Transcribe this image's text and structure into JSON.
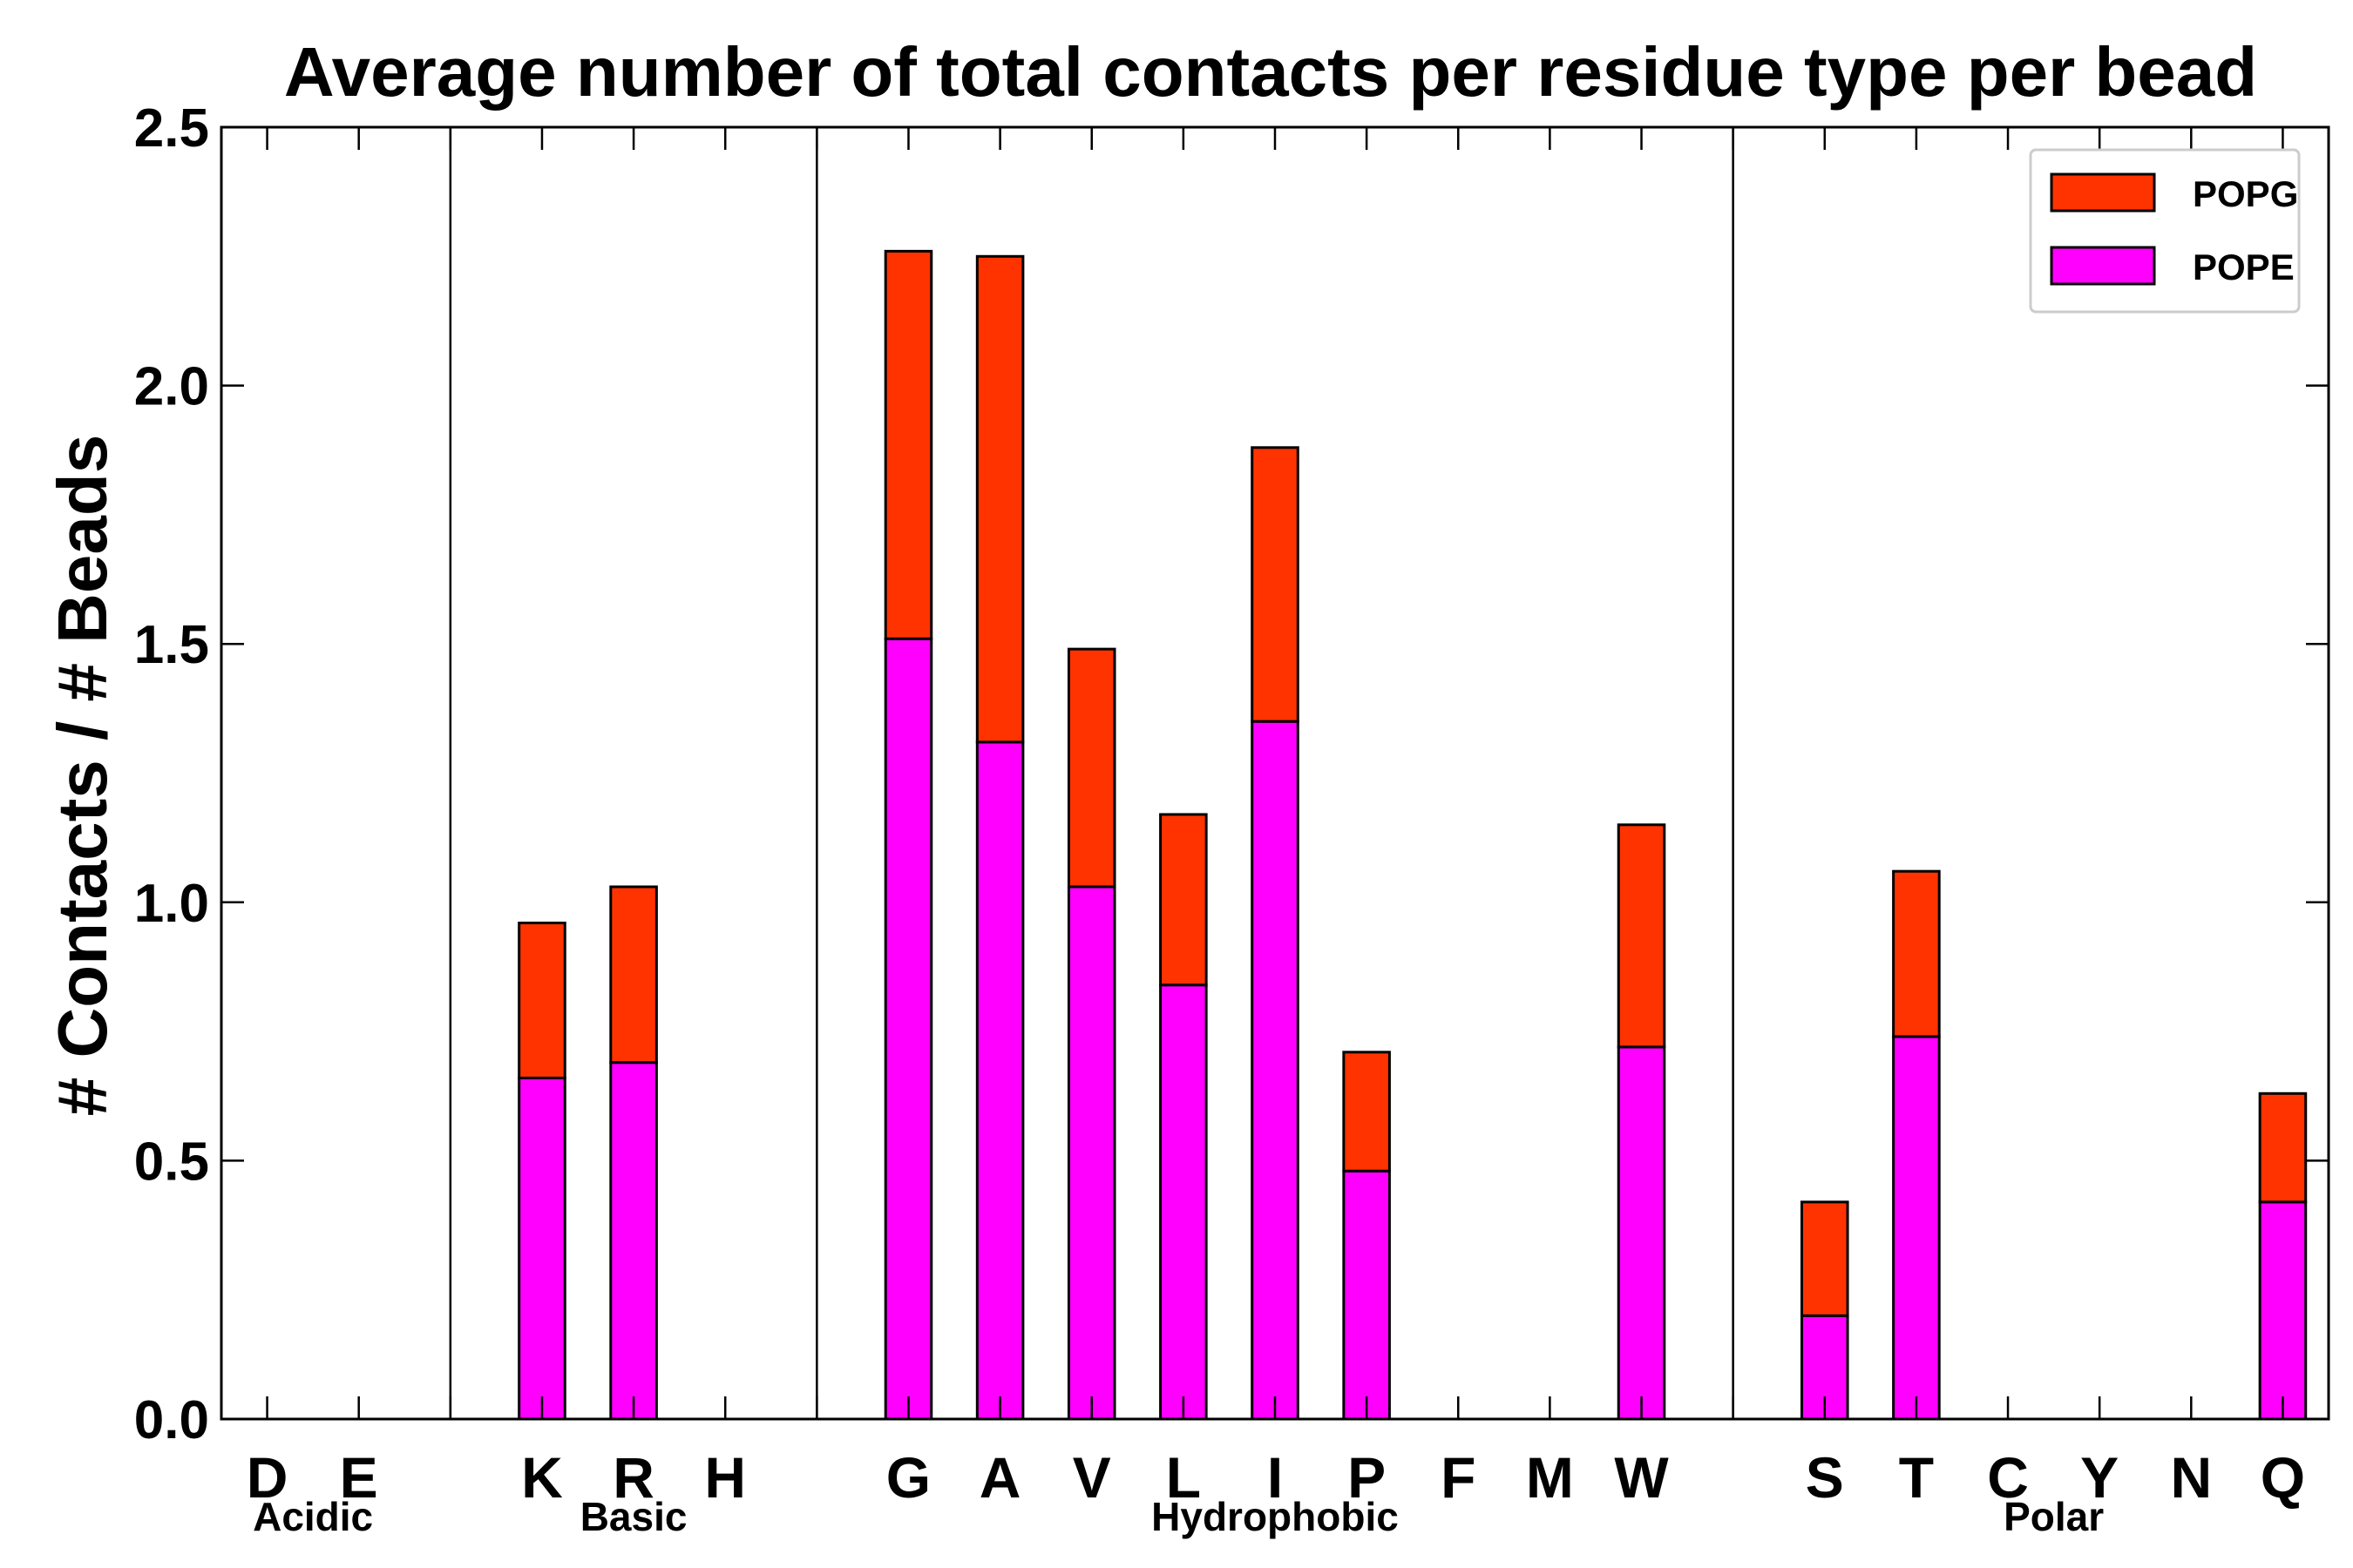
{
  "chart_data": {
    "type": "bar",
    "stacked": true,
    "title": "Average number of total contacts per residue type per bead",
    "xlabel": "",
    "ylabel": "# Contacts / # Beads",
    "ylim": [
      0,
      2.5
    ],
    "yticks": [
      0.0,
      0.5,
      1.0,
      1.5,
      2.0,
      2.5
    ],
    "ytick_labels": [
      "0.0",
      "0.5",
      "1.0",
      "1.5",
      "2.0",
      "2.5"
    ],
    "categories": [
      "D",
      "E",
      "",
      "K",
      "R",
      "H",
      "",
      "G",
      "A",
      "V",
      "L",
      "I",
      "P",
      "F",
      "M",
      "W",
      "",
      "S",
      "T",
      "C",
      "Y",
      "N",
      "Q"
    ],
    "series": [
      {
        "name": "POPE",
        "color": "#ff00ff",
        "values": [
          0,
          0,
          0,
          0.66,
          0.69,
          0,
          0,
          1.51,
          1.31,
          1.03,
          0.84,
          1.35,
          0.48,
          0,
          0,
          0.72,
          0,
          0.2,
          0.74,
          0,
          0,
          0,
          0.42
        ]
      },
      {
        "name": "POPG",
        "color": "#ff3300",
        "values": [
          0,
          0,
          0,
          0.3,
          0.34,
          0,
          0,
          0.75,
          0.94,
          0.46,
          0.33,
          0.53,
          0.23,
          0,
          0,
          0.43,
          0,
          0.22,
          0.32,
          0,
          0,
          0,
          0.21
        ]
      }
    ],
    "groups": [
      {
        "label": "Acidic",
        "first": 0,
        "last": 1
      },
      {
        "label": "Basic",
        "first": 3,
        "last": 5
      },
      {
        "label": "Hydrophobic",
        "first": 7,
        "last": 15
      },
      {
        "label": "Polar",
        "first": 17,
        "last": 22
      }
    ],
    "group_dividers_after": [
      2,
      6,
      16
    ],
    "legend": {
      "position": "top-right",
      "entries": [
        {
          "label": "POPG",
          "color": "#ff3300"
        },
        {
          "label": "POPE",
          "color": "#ff00ff"
        }
      ]
    }
  }
}
